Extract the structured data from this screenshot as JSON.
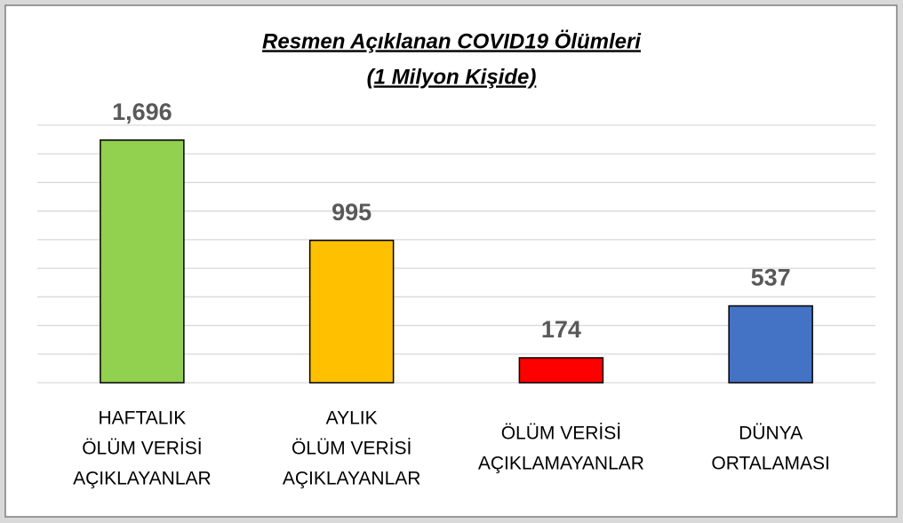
{
  "chart_data": {
    "type": "bar",
    "title": "Resmen Açıklanan COVID19 Ölümleri",
    "subtitle": "(1 Milyon Kişide)",
    "categories": [
      [
        "HAFTALIK",
        "ÖLÜM VERİSİ",
        "AÇIKLAYANLAR"
      ],
      [
        "AYLIK",
        "ÖLÜM VERİSİ",
        "AÇIKLAYANLAR"
      ],
      [
        "ÖLÜM VERİSİ",
        "AÇIKLAMAYANLAR"
      ],
      [
        "DÜNYA",
        "ORTALAMASI"
      ]
    ],
    "values": [
      1696,
      995,
      174,
      537
    ],
    "value_labels": [
      "1,696",
      "995",
      "174",
      "537"
    ],
    "colors": [
      "#92d050",
      "#ffc000",
      "#ff0000",
      "#4472c4"
    ],
    "ylim": [
      0,
      1800
    ],
    "yticks": [
      0,
      200,
      400,
      600,
      800,
      1000,
      1200,
      1400,
      1600,
      1800
    ],
    "grid": true
  }
}
